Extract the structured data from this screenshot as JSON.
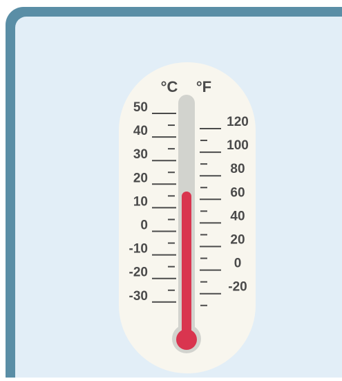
{
  "thermometer": {
    "celsius_unit": "°C",
    "fahrenheit_unit": "°F",
    "celsius_labels": [
      "50",
      "40",
      "30",
      "20",
      "10",
      "0",
      "-10",
      "-20",
      "-30"
    ],
    "fahrenheit_labels": [
      "120",
      "100",
      "80",
      "60",
      "40",
      "20",
      "0",
      "-20"
    ]
  }
}
